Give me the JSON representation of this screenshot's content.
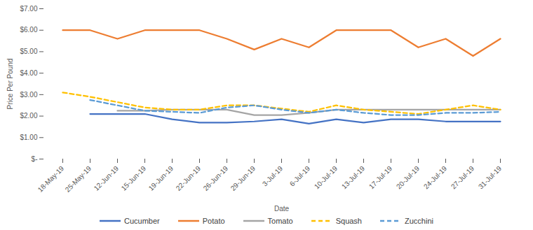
{
  "chart_data": {
    "type": "line",
    "x_label": "Date",
    "y_label": "Price Per Pound",
    "categories": [
      "18-May-19",
      "25-May-19",
      "12-Jun-19",
      "15-Jun-19",
      "19-Jun-19",
      "22-Jun-19",
      "26-Jun-19",
      "29-Jun-19",
      "3-Jul-19",
      "6-Jul-19",
      "10-Jul-19",
      "13-Jul-19",
      "17-Jul-19",
      "20-Jul-19",
      "24-Jul-19",
      "27-Jul-19",
      "31-Jul-19"
    ],
    "series": [
      {
        "name": "Cucumber",
        "color": "#4472c4",
        "line_style": "solid",
        "values": [
          null,
          2.1,
          2.1,
          2.1,
          1.85,
          1.7,
          1.7,
          1.75,
          1.85,
          1.65,
          1.85,
          1.7,
          1.85,
          1.85,
          1.75,
          1.75,
          1.75
        ]
      },
      {
        "name": "Potato",
        "color": "#ed7d31",
        "line_style": "solid",
        "values": [
          6.0,
          6.0,
          5.6,
          6.0,
          6.0,
          6.0,
          5.6,
          5.1,
          5.6,
          5.2,
          6.0,
          6.0,
          6.0,
          5.2,
          5.6,
          4.8,
          5.6
        ]
      },
      {
        "name": "Tomato",
        "color": "#a5a5a5",
        "line_style": "solid",
        "values": [
          null,
          null,
          2.25,
          2.25,
          2.3,
          2.3,
          2.3,
          2.05,
          2.05,
          2.15,
          2.3,
          2.3,
          2.3,
          2.3,
          2.3,
          2.3,
          2.3
        ]
      },
      {
        "name": "Squash",
        "color": "#ffc000",
        "line_style": "dashed",
        "values": [
          3.1,
          2.9,
          2.65,
          2.4,
          2.3,
          2.3,
          2.5,
          2.5,
          2.35,
          2.2,
          2.5,
          2.3,
          2.2,
          2.1,
          2.3,
          2.5,
          2.3
        ]
      },
      {
        "name": "Zucchini",
        "color": "#5b9bd5",
        "line_style": "dashed",
        "values": [
          null,
          2.75,
          2.5,
          2.25,
          2.2,
          2.15,
          2.4,
          2.5,
          2.3,
          2.15,
          2.3,
          2.15,
          2.05,
          2.05,
          2.15,
          2.15,
          2.2
        ]
      }
    ],
    "ylim": [
      0,
      7
    ],
    "yticks": [
      {
        "value": 0,
        "label": "$-"
      },
      {
        "value": 1,
        "label": "$1.00"
      },
      {
        "value": 2,
        "label": "$2.00"
      },
      {
        "value": 3,
        "label": "$3.00"
      },
      {
        "value": 4,
        "label": "$4.00"
      },
      {
        "value": 5,
        "label": "$5.00"
      },
      {
        "value": 6,
        "label": "$6.00"
      },
      {
        "value": 7,
        "label": "$7.00"
      }
    ],
    "grid": false,
    "legend": "bottom"
  }
}
